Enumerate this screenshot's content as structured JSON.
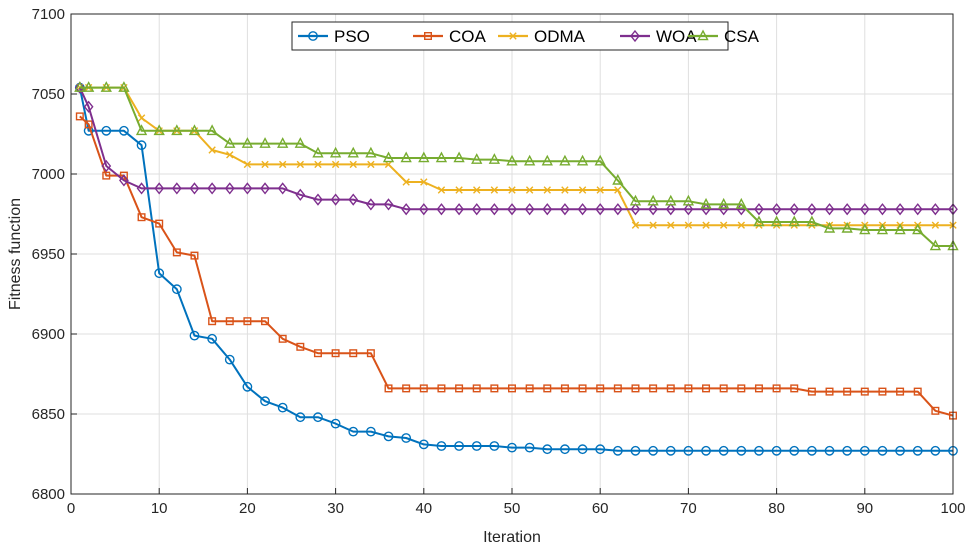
{
  "chart_data": {
    "type": "line",
    "title": "",
    "xlabel": "Iteration",
    "ylabel": "Fitness function",
    "xlim": [
      0,
      100
    ],
    "ylim": [
      6800,
      7100
    ],
    "xticks": [
      0,
      10,
      20,
      30,
      40,
      50,
      60,
      70,
      80,
      90,
      100
    ],
    "yticks": [
      6800,
      6850,
      6900,
      6950,
      7000,
      7050,
      7100
    ],
    "grid": true,
    "legend_position": "top-center",
    "x": [
      1,
      2,
      4,
      6,
      8,
      10,
      12,
      14,
      16,
      18,
      20,
      22,
      24,
      26,
      28,
      30,
      32,
      34,
      36,
      38,
      40,
      42,
      44,
      46,
      48,
      50,
      52,
      54,
      56,
      58,
      60,
      62,
      64,
      66,
      68,
      70,
      72,
      74,
      76,
      78,
      80,
      82,
      84,
      86,
      88,
      90,
      92,
      94,
      96,
      98,
      100
    ],
    "series": [
      {
        "name": "PSO",
        "color": "#0072BD",
        "marker": "circle",
        "values": [
          7054,
          7027,
          7027,
          7027,
          7018,
          6938,
          6928,
          6899,
          6897,
          6884,
          6867,
          6858,
          6854,
          6848,
          6848,
          6844,
          6839,
          6839,
          6836,
          6835,
          6831,
          6830,
          6830,
          6830,
          6830,
          6829,
          6829,
          6828,
          6828,
          6828,
          6828,
          6827,
          6827,
          6827,
          6827,
          6827,
          6827,
          6827,
          6827,
          6827,
          6827,
          6827,
          6827,
          6827,
          6827,
          6827,
          6827,
          6827,
          6827,
          6827,
          6827
        ]
      },
      {
        "name": "COA",
        "color": "#D95319",
        "marker": "square",
        "values": [
          7036,
          7031,
          6999,
          6999,
          6973,
          6969,
          6951,
          6949,
          6908,
          6908,
          6908,
          6908,
          6897,
          6892,
          6888,
          6888,
          6888,
          6888,
          6866,
          6866,
          6866,
          6866,
          6866,
          6866,
          6866,
          6866,
          6866,
          6866,
          6866,
          6866,
          6866,
          6866,
          6866,
          6866,
          6866,
          6866,
          6866,
          6866,
          6866,
          6866,
          6866,
          6866,
          6864,
          6864,
          6864,
          6864,
          6864,
          6864,
          6864,
          6852,
          6849
        ]
      },
      {
        "name": "ODMA",
        "color": "#EDB120",
        "marker": "cross",
        "values": [
          7054,
          7054,
          7054,
          7054,
          7035,
          7027,
          7027,
          7027,
          7015,
          7012,
          7006,
          7006,
          7006,
          7006,
          7006,
          7006,
          7006,
          7006,
          7006,
          6995,
          6995,
          6990,
          6990,
          6990,
          6990,
          6990,
          6990,
          6990,
          6990,
          6990,
          6990,
          6990,
          6968,
          6968,
          6968,
          6968,
          6968,
          6968,
          6968,
          6968,
          6968,
          6968,
          6968,
          6968,
          6968,
          6968,
          6968,
          6968,
          6968,
          6968,
          6968
        ]
      },
      {
        "name": "WOA",
        "color": "#7E2F8E",
        "marker": "diamond",
        "values": [
          7054,
          7042,
          7005,
          6996,
          6991,
          6991,
          6991,
          6991,
          6991,
          6991,
          6991,
          6991,
          6991,
          6987,
          6984,
          6984,
          6984,
          6981,
          6981,
          6978,
          6978,
          6978,
          6978,
          6978,
          6978,
          6978,
          6978,
          6978,
          6978,
          6978,
          6978,
          6978,
          6978,
          6978,
          6978,
          6978,
          6978,
          6978,
          6978,
          6978,
          6978,
          6978,
          6978,
          6978,
          6978,
          6978,
          6978,
          6978,
          6978,
          6978,
          6978
        ]
      },
      {
        "name": "CSA",
        "color": "#77AC30",
        "marker": "triangle",
        "values": [
          7054,
          7054,
          7054,
          7054,
          7027,
          7027,
          7027,
          7027,
          7027,
          7019,
          7019,
          7019,
          7019,
          7019,
          7013,
          7013,
          7013,
          7013,
          7010,
          7010,
          7010,
          7010,
          7010,
          7009,
          7009,
          7008,
          7008,
          7008,
          7008,
          7008,
          7008,
          6996,
          6983,
          6983,
          6983,
          6983,
          6981,
          6981,
          6981,
          6970,
          6970,
          6970,
          6970,
          6966,
          6966,
          6965,
          6965,
          6965,
          6965,
          6955,
          6955
        ]
      }
    ]
  }
}
